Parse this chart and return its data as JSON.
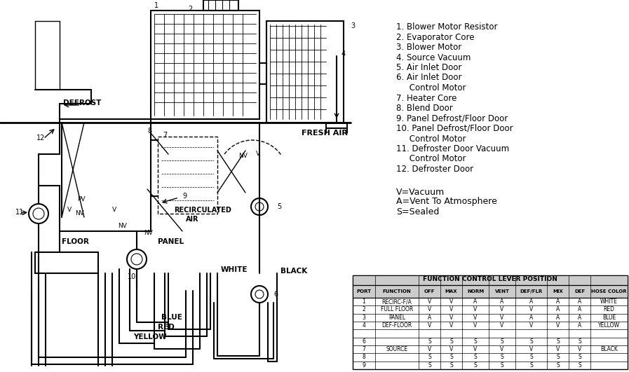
{
  "bg_color": "#ffffff",
  "legend_lines": [
    "1. Blower Motor Resistor",
    "2. Evaporator Core",
    "3. Blower Motor",
    "4. Source Vacuum",
    "5. Air Inlet Door",
    "6. Air Inlet Door",
    "     Control Motor",
    "7. Heater Core",
    "8. Blend Door",
    "9. Panel Defrost/Floor Door",
    "10. Panel Defrost/Floor Door",
    "     Control Motor",
    "11. Defroster Door Vacuum",
    "     Control Motor",
    "12. Defroster Door"
  ],
  "abbrev_lines": [
    "V=Vacuum",
    "A=Vent To Atmosphere",
    "S=Sealed"
  ],
  "table_title": "FUNCTION CONTROL LEVER POSITION",
  "table_headers": [
    "PORT",
    "FUNCTION",
    "OFF",
    "MAX",
    "NORM",
    "VENT",
    "DEF/FLR",
    "MIX",
    "DEF",
    "HOSE COLOR"
  ],
  "table_rows": [
    [
      "1",
      "RECIRC-F/A",
      "V",
      "V",
      "A",
      "A",
      "A",
      "A",
      "A",
      "WHITE"
    ],
    [
      "2",
      "FULL FLOOR",
      "V",
      "V",
      "V",
      "V",
      "V",
      "A",
      "A",
      "RED"
    ],
    [
      "3",
      "PANEL",
      "A",
      "V",
      "V",
      "V",
      "A",
      "A",
      "A",
      "BLUE"
    ],
    [
      "4",
      "DEF-FLOOR",
      "V",
      "V",
      "V",
      "V",
      "V",
      "V",
      "A",
      "YELLOW"
    ],
    [
      "",
      "",
      "",
      "",
      "",
      "",
      "",
      "",
      "",
      ""
    ],
    [
      "6",
      "",
      "S",
      "S",
      "S",
      "S",
      "S",
      "S",
      "S",
      ""
    ],
    [
      "7",
      "SOURCE",
      "V",
      "V",
      "V",
      "V",
      "V",
      "V",
      "V",
      "BLACK"
    ],
    [
      "8",
      "",
      "S",
      "S",
      "S",
      "S",
      "S",
      "S",
      "S",
      ""
    ],
    [
      "9",
      "",
      "S",
      "S",
      "S",
      "S",
      "S",
      "S",
      "S",
      ""
    ]
  ]
}
